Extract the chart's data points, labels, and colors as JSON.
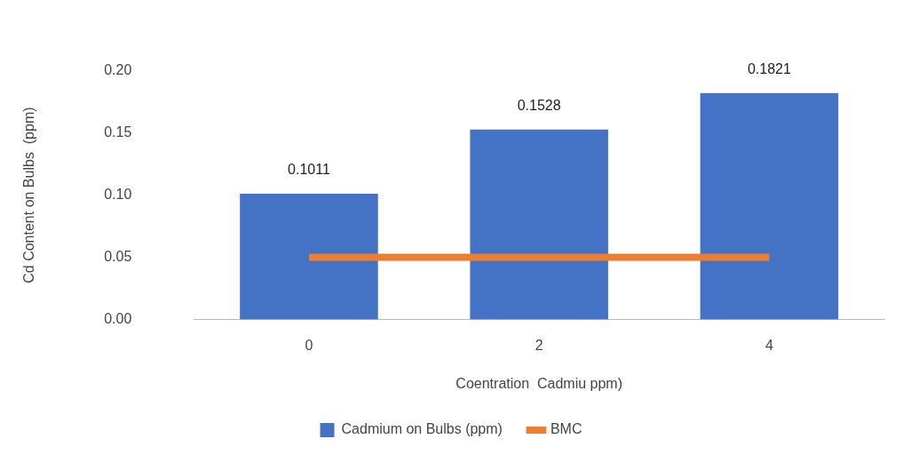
{
  "chart_data": {
    "type": "bar",
    "xlabel": "Coentration  Cadmiu ppm)",
    "ylabel": "Cd Content on Bulbs  (ppm)",
    "categories": [
      "0",
      "2",
      "4"
    ],
    "series": [
      {
        "name": "Cadmium on Bulbs (ppm)",
        "color": "#4472c4",
        "values": [
          0.1011,
          0.1528,
          0.1821
        ],
        "value_labels": [
          "0.1011",
          "0.1528",
          "0.1821"
        ]
      },
      {
        "name": "BMC",
        "type": "line",
        "color": "#ed7d31",
        "values": [
          0.05,
          0.05,
          0.05
        ]
      }
    ],
    "ylim": [
      0,
      0.2
    ],
    "yticks": [
      {
        "value": 0,
        "label": "0.00"
      },
      {
        "value": 0.05,
        "label": "0.05"
      },
      {
        "value": 0.1,
        "label": "0.10"
      },
      {
        "value": 0.15,
        "label": "0.15"
      },
      {
        "value": 0.2,
        "label": "0.20"
      }
    ],
    "grid": false,
    "legend": "bottom"
  }
}
